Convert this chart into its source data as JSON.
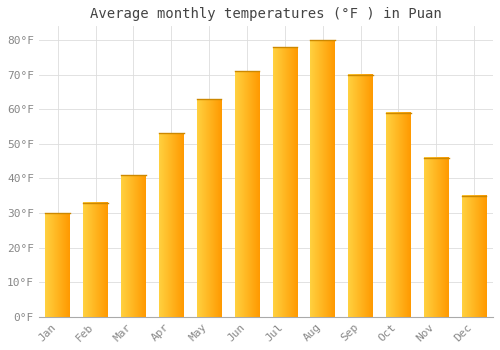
{
  "title": "Average monthly temperatures (°F ) in Puan",
  "months": [
    "Jan",
    "Feb",
    "Mar",
    "Apr",
    "May",
    "Jun",
    "Jul",
    "Aug",
    "Sep",
    "Oct",
    "Nov",
    "Dec"
  ],
  "values": [
    30,
    33,
    41,
    53,
    63,
    71,
    78,
    80,
    70,
    59,
    46,
    35
  ],
  "bar_color_left": "#FFD040",
  "bar_color_right": "#FFA000",
  "bar_top_color": "#CC8800",
  "background_color": "#FFFFFF",
  "grid_color": "#DDDDDD",
  "ylim": [
    0,
    84
  ],
  "yticks": [
    0,
    10,
    20,
    30,
    40,
    50,
    60,
    70,
    80
  ],
  "title_fontsize": 10,
  "tick_fontsize": 8,
  "tick_label_color": "#888888",
  "font_family": "monospace",
  "bar_width": 0.65
}
